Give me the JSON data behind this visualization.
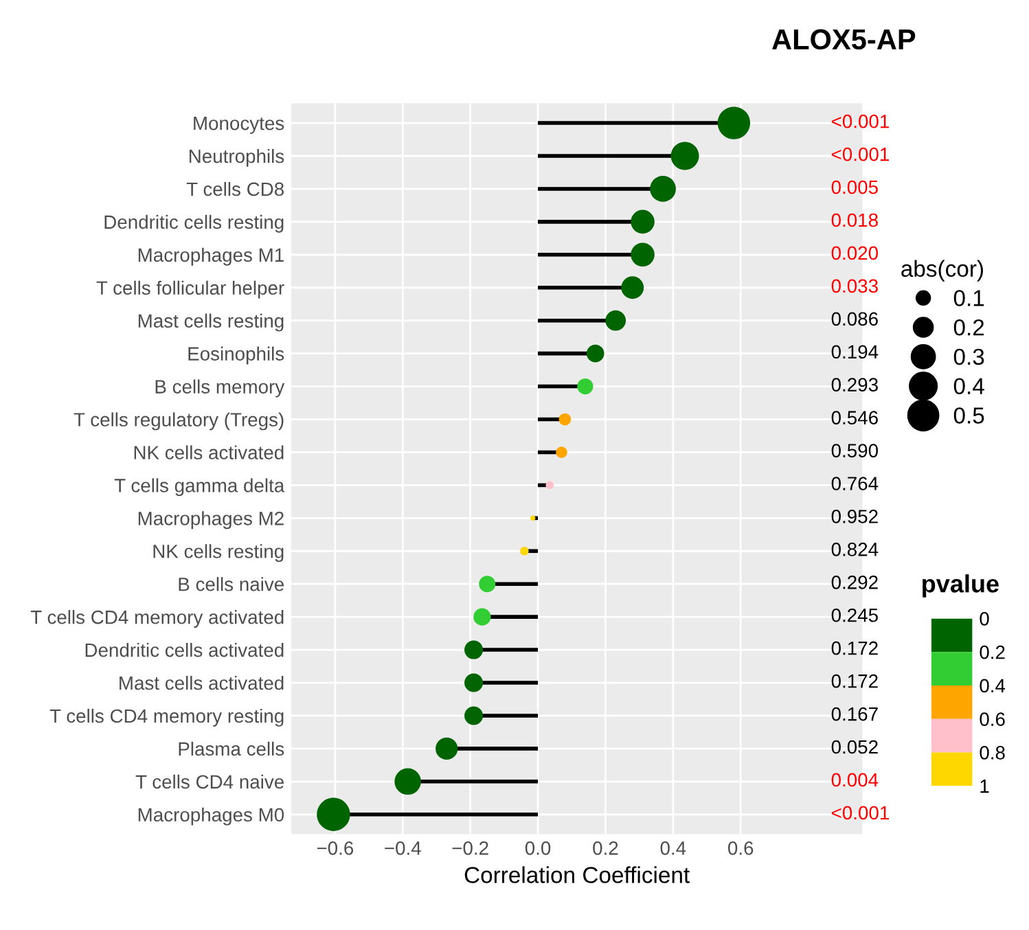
{
  "chart_data": {
    "type": "lollipop",
    "orientation": "horizontal",
    "title": "ALOX5-AP",
    "xlabel": "Correlation Coefficient",
    "categories": [
      "Monocytes",
      "Neutrophils",
      "T cells CD8",
      "Dendritic cells resting",
      "Macrophages M1",
      "T cells follicular helper",
      "Mast cells resting",
      "Eosinophils",
      "B cells memory",
      "T cells regulatory (Tregs)",
      "NK cells activated",
      "T cells gamma delta",
      "Macrophages M2",
      "NK cells resting",
      "B cells naive",
      "T cells CD4 memory activated",
      "Dendritic cells activated",
      "Mast cells activated",
      "T cells CD4 memory resting",
      "Plasma cells",
      "T cells CD4 naive",
      "Macrophages M0"
    ],
    "values": [
      0.58,
      0.435,
      0.37,
      0.31,
      0.31,
      0.28,
      0.23,
      0.17,
      0.14,
      0.08,
      0.07,
      0.035,
      -0.015,
      -0.04,
      -0.15,
      -0.165,
      -0.19,
      -0.19,
      -0.19,
      -0.27,
      -0.385,
      -0.605
    ],
    "sizes": [
      0.58,
      0.435,
      0.37,
      0.31,
      0.31,
      0.28,
      0.23,
      0.17,
      0.14,
      0.08,
      0.07,
      0.035,
      0.015,
      0.04,
      0.15,
      0.165,
      0.19,
      0.19,
      0.19,
      0.27,
      0.385,
      0.605
    ],
    "size_legend": [
      0.1,
      0.2,
      0.3,
      0.4,
      0.5
    ],
    "legend_title": "abs(cor)",
    "colors": [
      "#006400",
      "#006400",
      "#006400",
      "#006400",
      "#006400",
      "#006400",
      "#006400",
      "#006400",
      "#32cd32",
      "#ffa500",
      "#ffa500",
      "#ffc0cb",
      "#ffd700",
      "#ffd700",
      "#32cd32",
      "#32cd32",
      "#006400",
      "#006400",
      "#006400",
      "#006400",
      "#006400",
      "#006400"
    ],
    "clabel": "pvalue",
    "clim": [
      0,
      1
    ],
    "cticks": [
      0,
      0.2,
      0.4,
      0.6,
      0.8,
      1
    ],
    "annotations": [
      "<0.001",
      "<0.001",
      "0.005",
      "0.018",
      "0.020",
      "0.033",
      "0.086",
      "0.194",
      "0.293",
      "0.546",
      "0.590",
      "0.764",
      "0.952",
      "0.824",
      "0.292",
      "0.245",
      "0.172",
      "0.172",
      "0.167",
      "0.052",
      "0.004",
      "<0.001"
    ],
    "xlim": [
      -0.73,
      0.96
    ],
    "xticks": [
      {
        "value": -0.6,
        "label": "−0.6"
      },
      {
        "value": -0.4,
        "label": "−0.4"
      },
      {
        "value": -0.2,
        "label": "−0.2"
      },
      {
        "value": 0,
        "label": "0.0"
      },
      {
        "value": 0.2,
        "label": "0.2"
      },
      {
        "value": 0.4,
        "label": "0.4"
      },
      {
        "value": 0.6,
        "label": "0.6"
      }
    ],
    "grid": true
  }
}
